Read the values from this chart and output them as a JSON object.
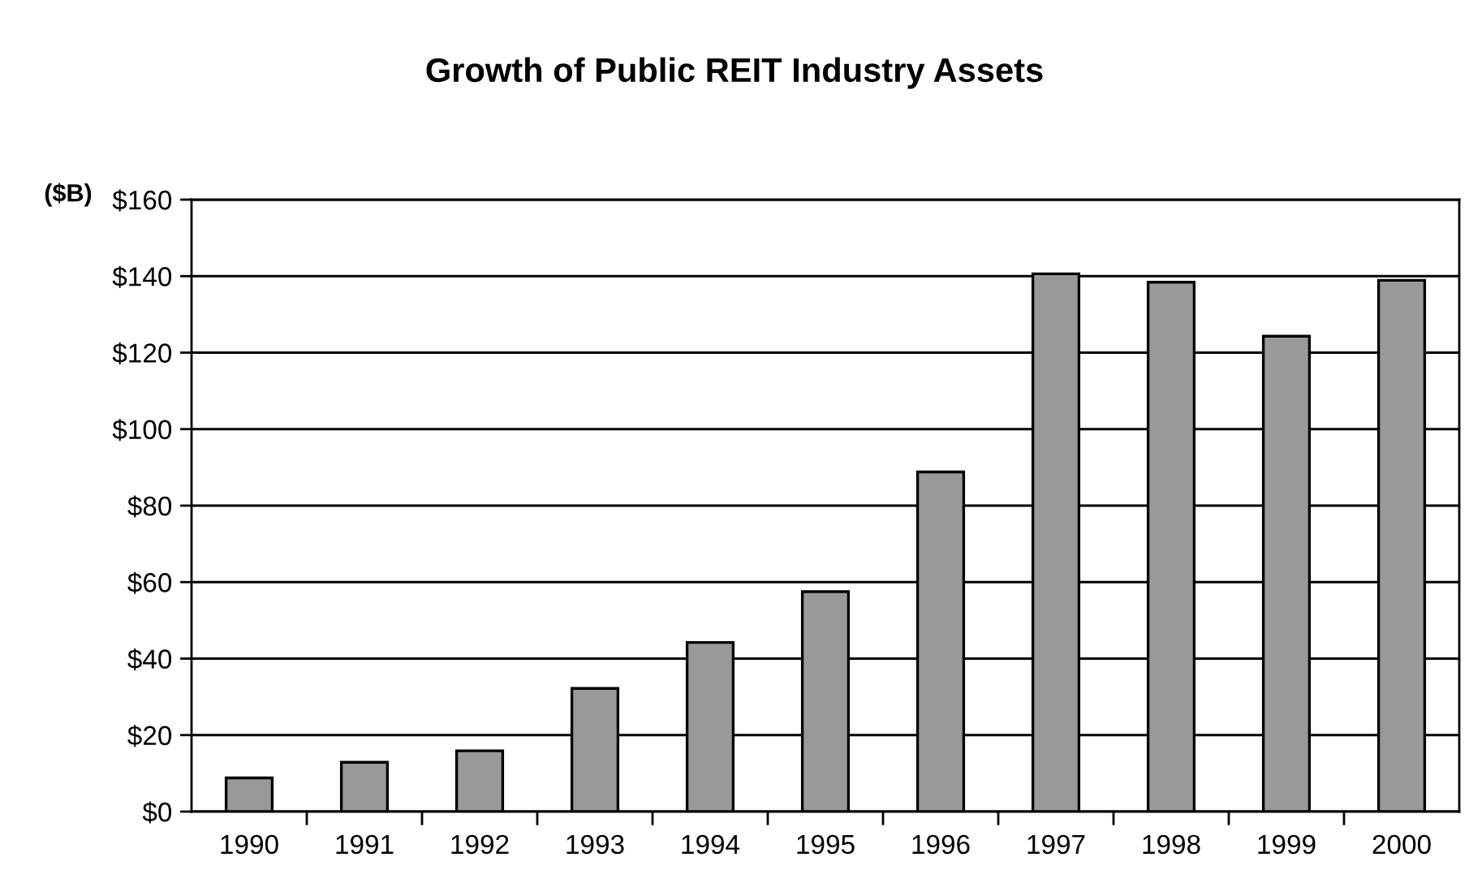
{
  "chart_data": {
    "type": "bar",
    "title": "Growth of Public REIT Industry Assets",
    "ylabel": "($B)",
    "categories": [
      "1990",
      "1991",
      "1992",
      "1993",
      "1994",
      "1995",
      "1996",
      "1997",
      "1998",
      "1999",
      "2000"
    ],
    "values": [
      8.8,
      12.9,
      15.9,
      32.2,
      44.2,
      57.5,
      88.8,
      140.6,
      138.4,
      124.3,
      138.9
    ],
    "color": "#999999",
    "ylim": [
      0,
      160
    ],
    "yticks": [
      {
        "value": 0,
        "label": "$0"
      },
      {
        "value": 20,
        "label": "$20"
      },
      {
        "value": 40,
        "label": "$40"
      },
      {
        "value": 60,
        "label": "$60"
      },
      {
        "value": 80,
        "label": "$80"
      },
      {
        "value": 100,
        "label": "$100"
      },
      {
        "value": 120,
        "label": "$120"
      },
      {
        "value": 140,
        "label": "$140"
      },
      {
        "value": 160,
        "label": "$160"
      }
    ],
    "grid": "y"
  }
}
